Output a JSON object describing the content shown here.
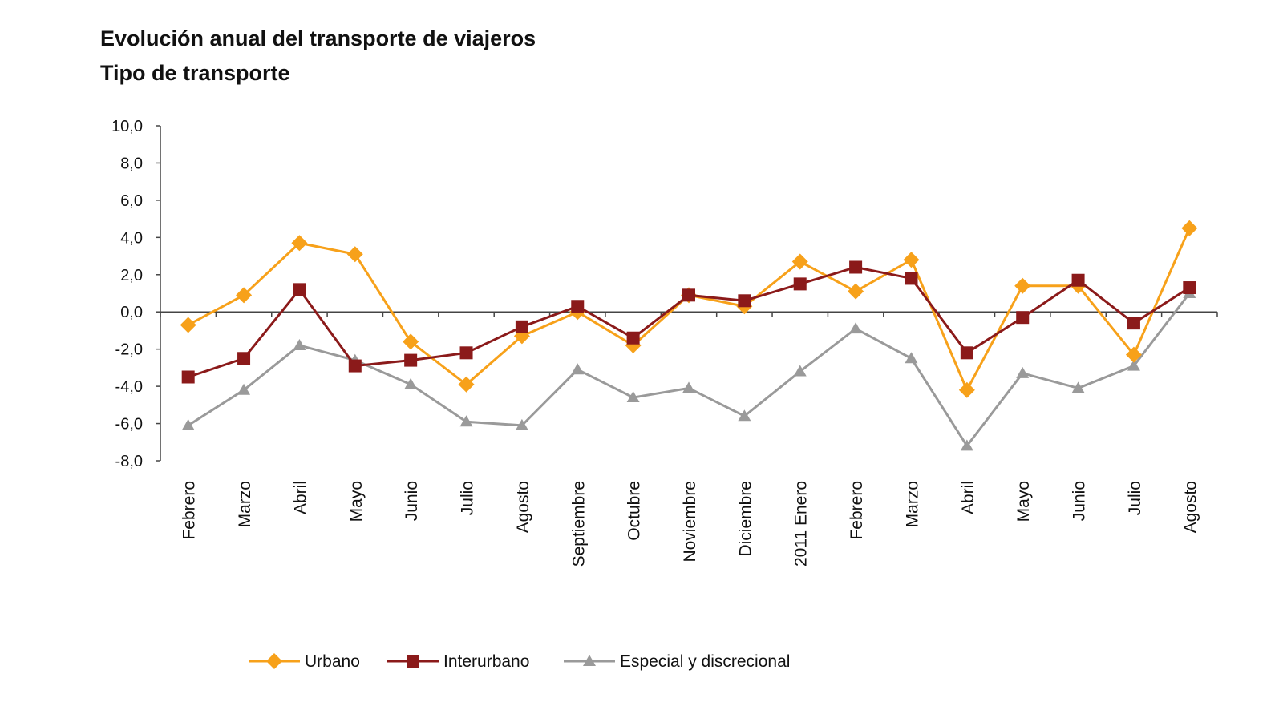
{
  "chart_data": {
    "type": "line",
    "title": "Evolución anual del transporte de viajeros",
    "subtitle": "Tipo de transporte",
    "categories": [
      "Febrero",
      "Marzo",
      "Abril",
      "Mayo",
      "Junio",
      "Julio",
      "Agosto",
      "Septiembre",
      "Octubre",
      "Noviembre",
      "Diciembre",
      "2011 Enero",
      "Febrero",
      "Marzo",
      "Abril",
      "Mayo",
      "Junio",
      "Julio",
      "Agosto"
    ],
    "ylim": [
      -8,
      10
    ],
    "yticks": [
      "10,0",
      "8,0",
      "6,0",
      "4,0",
      "2,0",
      "0,0",
      "-2,0",
      "-4,0",
      "-6,0",
      "-8,0"
    ],
    "ytick_values": [
      10,
      8,
      6,
      4,
      2,
      0,
      -2,
      -4,
      -6,
      -8
    ],
    "grid": false,
    "legend_position": "bottom",
    "series": [
      {
        "name": "Urbano",
        "color": "#F7A11A",
        "marker": "diamond",
        "values": [
          -0.7,
          0.9,
          3.7,
          3.1,
          -1.6,
          -3.9,
          -1.3,
          0.0,
          -1.8,
          0.9,
          0.3,
          2.7,
          1.1,
          2.8,
          -4.2,
          1.4,
          1.4,
          -2.3,
          4.5
        ]
      },
      {
        "name": "Interurbano",
        "color": "#8B1A1A",
        "marker": "square",
        "values": [
          -3.5,
          -2.5,
          1.2,
          -2.9,
          -2.6,
          -2.2,
          -0.8,
          0.3,
          -1.4,
          0.9,
          0.6,
          1.5,
          2.4,
          1.8,
          -2.2,
          -0.3,
          1.7,
          -0.6,
          1.3
        ]
      },
      {
        "name": "Especial y discrecional",
        "color": "#9A9A9A",
        "marker": "triangle",
        "values": [
          -6.1,
          -4.2,
          -1.8,
          -2.6,
          -3.9,
          -5.9,
          -6.1,
          -3.1,
          -4.6,
          -4.1,
          -5.6,
          -3.2,
          -0.9,
          -2.5,
          -7.2,
          -3.3,
          -4.1,
          -2.9,
          1.0
        ]
      }
    ]
  }
}
